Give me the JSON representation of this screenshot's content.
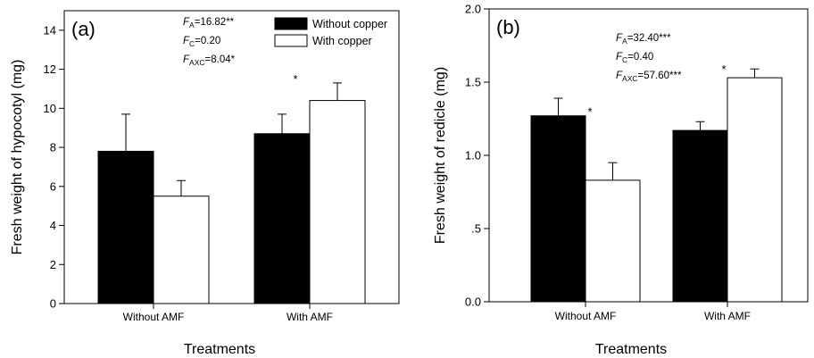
{
  "chart_data": [
    {
      "type": "bar",
      "panel_label": "(a)",
      "categories": [
        "Without AMF",
        "With AMF"
      ],
      "series": [
        {
          "name": "Without copper",
          "color": "#000000",
          "values": [
            7.8,
            8.7
          ],
          "errors": [
            1.9,
            1.0
          ],
          "significance": [
            "",
            ""
          ]
        },
        {
          "name": "With copper",
          "color": "#ffffff",
          "values": [
            5.5,
            10.4
          ],
          "errors": [
            0.8,
            0.9
          ],
          "significance": [
            "",
            ""
          ]
        }
      ],
      "category_markers": [
        "",
        "*"
      ],
      "xlabel": "Treatments",
      "ylabel": "Fresh weight of hypocotyl (mg)",
      "ylim": [
        0,
        15
      ],
      "yticks": [
        0,
        2,
        4,
        6,
        8,
        10,
        12,
        14
      ],
      "ytick_labels": [
        "0",
        "2",
        "4",
        "6",
        "8",
        "10",
        "12",
        "14"
      ],
      "stats": [
        {
          "f": "F",
          "sub": "A",
          "value": "=16.82**"
        },
        {
          "f": "F",
          "sub": "C",
          "value": "=0.20"
        },
        {
          "f": "F",
          "sub": "AXC",
          "value": "=8.04*"
        }
      ],
      "legend": {
        "position": "top-right",
        "entries": [
          "Without copper",
          "With copper"
        ]
      }
    },
    {
      "type": "bar",
      "panel_label": "(b)",
      "categories": [
        "Without AMF",
        "With AMF"
      ],
      "series": [
        {
          "name": "Without copper",
          "color": "#000000",
          "values": [
            1.27,
            1.17
          ],
          "errors": [
            0.12,
            0.06
          ],
          "significance": [
            "",
            ""
          ]
        },
        {
          "name": "With copper",
          "color": "#ffffff",
          "values": [
            0.83,
            1.53
          ],
          "errors": [
            0.12,
            0.06
          ],
          "significance": [
            "",
            ""
          ]
        }
      ],
      "category_markers": [
        "*",
        "*"
      ],
      "xlabel": "Treatments",
      "ylabel": "Fresh weight of redicle (mg)",
      "ylim": [
        0,
        2.0
      ],
      "yticks": [
        0,
        0.5,
        1.0,
        1.5,
        2.0
      ],
      "ytick_labels": [
        "0.0",
        ".5",
        "1.0",
        "1.5",
        "2.0"
      ],
      "stats": [
        {
          "f": "F",
          "sub": "A",
          "value": "=32.40***"
        },
        {
          "f": "F",
          "sub": "C",
          "value": "=0.40"
        },
        {
          "f": "F",
          "sub": "AXC",
          "value": "=57.60***"
        }
      ]
    }
  ]
}
